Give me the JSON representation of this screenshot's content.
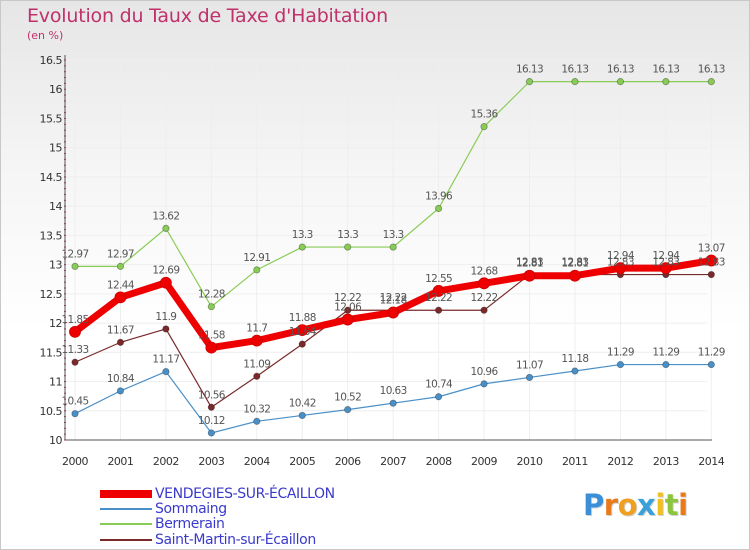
{
  "header": {
    "title": "Evolution du Taux de Taxe d'Habitation",
    "subtitle": "(en %)"
  },
  "logo": {
    "letters": [
      "P",
      "r",
      "o",
      "x",
      "i",
      "t",
      "i"
    ],
    "colors": [
      "#3a8fd8",
      "#e87a1a",
      "#f0a020",
      "#3aa0d8",
      "#f0c020",
      "#8cc63e",
      "#e87a1a"
    ]
  },
  "colors": {
    "background": "#ffffff",
    "grid": "#eeeeee",
    "axis": "#555555"
  },
  "chart_data": {
    "type": "line",
    "title": "Evolution du Taux de Taxe d'Habitation",
    "subtitle": "(en %)",
    "xlabel": "",
    "ylabel": "",
    "x": [
      2000,
      2001,
      2002,
      2003,
      2004,
      2005,
      2006,
      2007,
      2008,
      2009,
      2010,
      2011,
      2012,
      2013,
      2014
    ],
    "x_tick_labels": [
      "2000",
      "2001",
      "2002",
      "2003",
      "2004",
      "2005",
      "2006",
      "2007",
      "2008",
      "2009",
      "2010",
      "2011",
      "2012",
      "2013",
      "2014"
    ],
    "ylim": [
      10,
      16.5
    ],
    "y_ticks": [
      10,
      10.5,
      11,
      11.5,
      12,
      12.5,
      13,
      13.5,
      14,
      14.5,
      15,
      15.5,
      16,
      16.5
    ],
    "y_tick_labels": [
      "10",
      "10.5",
      "11",
      "11.5",
      "12",
      "12.5",
      "13",
      "13.5",
      "14",
      "14.5",
      "15",
      "15.5",
      "16",
      "16.5"
    ],
    "grid": true,
    "legend_position": "bottom-left",
    "series": [
      {
        "name": "VENDEGIES-SUR-ÉCAILLON",
        "color": "#ee0000",
        "emphasis": true,
        "values": [
          11.85,
          12.44,
          12.69,
          11.58,
          11.7,
          11.88,
          12.06,
          12.18,
          12.55,
          12.68,
          12.81,
          12.81,
          12.94,
          12.94,
          13.07
        ],
        "labels": [
          "11.85",
          "12.44",
          "12.69",
          "11.58",
          "11.7",
          "11.88",
          "12.06",
          "12.18",
          "12.55",
          "12.68",
          "12.81",
          "12.81",
          "12.94",
          "12.94",
          "13.07"
        ]
      },
      {
        "name": "Sommaing",
        "color": "#4a90c8",
        "emphasis": false,
        "values": [
          10.45,
          10.84,
          11.17,
          10.12,
          10.32,
          10.42,
          10.52,
          10.63,
          10.74,
          10.96,
          11.07,
          11.18,
          11.29,
          11.29,
          11.29
        ],
        "labels": [
          "10.45",
          "10.84",
          "11.17",
          "10.12",
          "10.32",
          "10.42",
          "10.52",
          "10.63",
          "10.74",
          "10.96",
          "11.07",
          "11.18",
          "11.29",
          "11.29",
          "11.29"
        ]
      },
      {
        "name": "Bermerain",
        "color": "#88cc55",
        "emphasis": false,
        "values": [
          12.97,
          12.97,
          13.62,
          12.28,
          12.91,
          13.3,
          13.3,
          13.3,
          13.96,
          15.36,
          16.13,
          16.13,
          16.13,
          16.13,
          16.13
        ],
        "labels": [
          "12.97",
          "12.97",
          "13.62",
          "12.28",
          "12.91",
          "13.3",
          "13.3",
          "13.3",
          "13.96",
          "15.36",
          "16.13",
          "16.13",
          "16.13",
          "16.13",
          "16.13"
        ]
      },
      {
        "name": "Saint-Martin-sur-Écaillon",
        "color": "#7a2a2a",
        "emphasis": false,
        "values": [
          11.33,
          11.67,
          11.9,
          10.56,
          11.09,
          11.64,
          12.22,
          12.22,
          12.22,
          12.22,
          12.83,
          12.83,
          12.83,
          12.83,
          12.83
        ],
        "labels": [
          "11.33",
          "11.67",
          "11.9",
          "10.56",
          "11.09",
          "11.64",
          "12.22",
          "12.22",
          "12.22",
          "12.22",
          "12.83",
          "12.83",
          "12.83",
          "12.83",
          "12.83"
        ]
      }
    ]
  }
}
